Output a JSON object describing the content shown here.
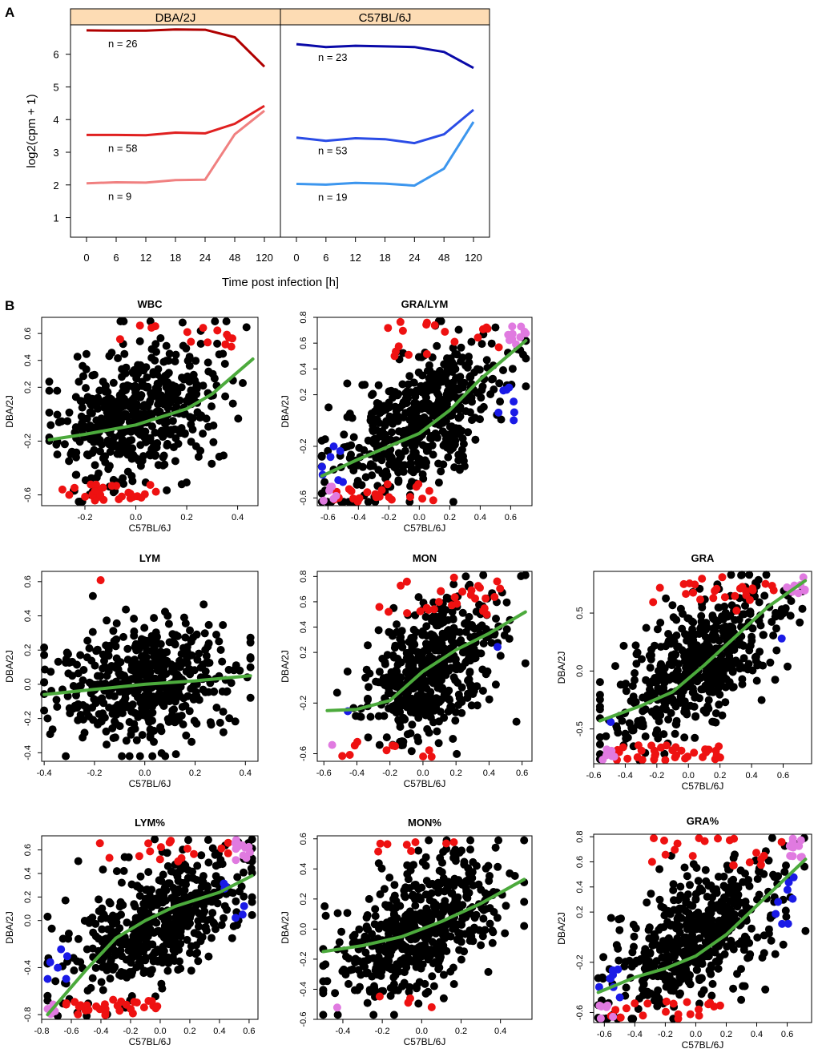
{
  "figure": {
    "panel_a_label": "A",
    "panel_b_label": "B"
  },
  "chart_data": [
    {
      "id": "A",
      "type": "line",
      "xlabel": "Time post infection [h]",
      "ylabel": "log2(cpm + 1)",
      "ylim": [
        0.4,
        6.9
      ],
      "yticks": [
        1,
        2,
        3,
        4,
        5,
        6
      ],
      "x": [
        "0",
        "6",
        "12",
        "18",
        "24",
        "48",
        "120"
      ],
      "strip_color": "#fddcb4",
      "panels": [
        {
          "name": "DBA/2J",
          "series": [
            {
              "name": "n = 26",
              "color": "#b00000",
              "values": [
                6.73,
                6.72,
                6.72,
                6.76,
                6.75,
                6.52,
                5.62
              ]
            },
            {
              "name": "n = 58",
              "color": "#e02020",
              "values": [
                3.53,
                3.53,
                3.52,
                3.6,
                3.58,
                3.87,
                4.42
              ]
            },
            {
              "name": "n = 9",
              "color": "#f08080",
              "values": [
                2.05,
                2.08,
                2.07,
                2.15,
                2.16,
                3.55,
                4.27
              ]
            }
          ]
        },
        {
          "name": "C57BL/6J",
          "series": [
            {
              "name": "n = 23",
              "color": "#0a0aa8",
              "values": [
                6.31,
                6.22,
                6.26,
                6.24,
                6.22,
                6.07,
                5.58
              ]
            },
            {
              "name": "n = 53",
              "color": "#2a4ce6",
              "values": [
                3.45,
                3.35,
                3.43,
                3.4,
                3.28,
                3.55,
                4.3
              ]
            },
            {
              "name": "n = 19",
              "color": "#3c96ee",
              "values": [
                2.03,
                2.01,
                2.06,
                2.04,
                1.98,
                2.5,
                3.93
              ]
            }
          ]
        }
      ]
    },
    {
      "id": "B",
      "type": "scatter",
      "xlabel": "C57BL/6J",
      "ylabel": "DBA/2J",
      "point_colors": {
        "default": "#000000",
        "red": "#ee1111",
        "blue": "#1a1ae6",
        "violet": "#e07ae0"
      },
      "line_color": "#4caa3c",
      "panels": [
        {
          "title": "WBC",
          "n": 520,
          "seed": 11,
          "xlim": [
            -0.37,
            0.48
          ],
          "ylim": [
            -0.68,
            0.72
          ],
          "xticks": [
            -0.2,
            0.0,
            0.2,
            0.4
          ],
          "xtick_labels": [
            "-0.2",
            "0.0",
            "0.2",
            "0.4"
          ],
          "yticks": [
            -0.6,
            -0.2,
            0.2,
            0.4,
            0.6
          ],
          "ytick_labels": [
            "-0.6",
            "-0.2",
            "0.2",
            "0.4",
            "0.6"
          ],
          "gen": {
            "mx": 0.0,
            "sx": 0.15,
            "slope": 0.5,
            "inter": 0.0,
            "noise": 0.24,
            "xmin": -0.34,
            "xmax": 0.46
          },
          "loess": [
            [
              -0.34,
              -0.19
            ],
            [
              -0.2,
              -0.15
            ],
            [
              0.0,
              -0.08
            ],
            [
              0.2,
              0.04
            ],
            [
              0.3,
              0.15
            ],
            [
              0.46,
              0.41
            ]
          ],
          "red_top": 14,
          "red_bottom": 28,
          "red_thr": 0.5,
          "blue": 0,
          "violet": 0
        },
        {
          "title": "GRA/LYM",
          "n": 540,
          "seed": 22,
          "xlim": [
            -0.67,
            0.74
          ],
          "ylim": [
            -0.66,
            0.8
          ],
          "xticks": [
            -0.6,
            -0.4,
            -0.2,
            0.0,
            0.2,
            0.4,
            0.6
          ],
          "xtick_labels": [
            "-0.6",
            "-0.4",
            "-0.2",
            "0.0",
            "0.2",
            "0.4",
            "0.6"
          ],
          "yticks": [
            -0.6,
            -0.2,
            0.2,
            0.4,
            0.6,
            0.8
          ],
          "ytick_labels": [
            "-0.6",
            "-0.2",
            "0.2",
            "0.4",
            "0.6",
            "0.8"
          ],
          "gen": {
            "mx": 0.0,
            "sx": 0.27,
            "slope": 0.7,
            "inter": 0.0,
            "noise": 0.24,
            "xmin": -0.64,
            "xmax": 0.7
          },
          "loess": [
            [
              -0.64,
              -0.43
            ],
            [
              -0.4,
              -0.3
            ],
            [
              -0.2,
              -0.2
            ],
            [
              0.0,
              -0.1
            ],
            [
              0.2,
              0.08
            ],
            [
              0.4,
              0.32
            ],
            [
              0.7,
              0.62
            ]
          ],
          "red_top": 18,
          "red_bottom": 22,
          "red_thr": 0.5,
          "blue": 14,
          "violet": 16
        },
        {
          "title": "LYM",
          "n": 520,
          "seed": 33,
          "xlim": [
            -0.41,
            0.45
          ],
          "ylim": [
            -0.45,
            0.66
          ],
          "xticks": [
            -0.4,
            -0.2,
            0.0,
            0.2,
            0.4
          ],
          "xtick_labels": [
            "-0.4",
            "-0.2",
            "0.0",
            "0.2",
            "0.4"
          ],
          "yticks": [
            -0.4,
            -0.2,
            0.0,
            0.2,
            0.4,
            0.6
          ],
          "ytick_labels": [
            "-0.4",
            "-0.2",
            "0.0",
            "0.2",
            "0.4",
            "0.6"
          ],
          "gen": {
            "mx": 0.0,
            "sx": 0.18,
            "slope": 0.12,
            "inter": 0.0,
            "noise": 0.17,
            "xmin": -0.4,
            "xmax": 0.42
          },
          "loess": [
            [
              -0.4,
              -0.06
            ],
            [
              -0.2,
              -0.03
            ],
            [
              0.0,
              0.0
            ],
            [
              0.2,
              0.02
            ],
            [
              0.42,
              0.05
            ]
          ],
          "red_top": 1,
          "red_bottom": 0,
          "red_thr": 0.6,
          "blue": 0,
          "violet": 0
        },
        {
          "title": "MON",
          "n": 520,
          "seed": 44,
          "xlim": [
            -0.64,
            0.66
          ],
          "ylim": [
            -0.66,
            0.84
          ],
          "xticks": [
            -0.6,
            -0.4,
            -0.2,
            0.0,
            0.2,
            0.4,
            0.6
          ],
          "xtick_labels": [
            "-0.6",
            "-0.4",
            "-0.2",
            "0.0",
            "0.2",
            "0.4",
            "0.6"
          ],
          "yticks": [
            -0.6,
            -0.2,
            0.2,
            0.4,
            0.6,
            0.8
          ],
          "ytick_labels": [
            "-0.6",
            "-0.2",
            "0.2",
            "0.4",
            "0.6",
            "0.8"
          ],
          "gen": {
            "mx": 0.05,
            "sx": 0.2,
            "slope": 0.7,
            "inter": 0.02,
            "noise": 0.24,
            "xmin": -0.58,
            "xmax": 0.62
          },
          "loess": [
            [
              -0.58,
              -0.26
            ],
            [
              -0.4,
              -0.25
            ],
            [
              -0.2,
              -0.18
            ],
            [
              0.0,
              0.05
            ],
            [
              0.2,
              0.22
            ],
            [
              0.4,
              0.35
            ],
            [
              0.62,
              0.52
            ]
          ],
          "red_top": 28,
          "red_bottom": 10,
          "red_thr": 0.5,
          "blue": 2,
          "violet": 1
        },
        {
          "title": "GRA",
          "n": 540,
          "seed": 55,
          "xlim": [
            -0.6,
            0.78
          ],
          "ylim": [
            -0.8,
            0.86
          ],
          "xticks": [
            -0.6,
            -0.4,
            -0.2,
            0.0,
            0.2,
            0.4,
            0.6
          ],
          "xtick_labels": [
            "-0.6",
            "-0.4",
            "-0.2",
            "0.0",
            "0.2",
            "0.4",
            "0.6"
          ],
          "yticks": [
            -0.5,
            0.0,
            0.5
          ],
          "ytick_labels": [
            "-0.5",
            "0.0",
            "0.5"
          ],
          "gen": {
            "mx": 0.05,
            "sx": 0.27,
            "slope": 0.8,
            "inter": 0.0,
            "noise": 0.25,
            "xmin": -0.56,
            "xmax": 0.74
          },
          "loess": [
            [
              -0.56,
              -0.43
            ],
            [
              -0.3,
              -0.3
            ],
            [
              -0.1,
              -0.18
            ],
            [
              0.1,
              0.05
            ],
            [
              0.3,
              0.3
            ],
            [
              0.5,
              0.55
            ],
            [
              0.74,
              0.78
            ]
          ],
          "red_top": 26,
          "red_bottom": 36,
          "red_thr": 0.5,
          "blue": 2,
          "violet": 16
        },
        {
          "title": "LYM%",
          "n": 540,
          "seed": 66,
          "xlim": [
            -0.8,
            0.66
          ],
          "ylim": [
            -0.84,
            0.72
          ],
          "xticks": [
            -0.8,
            -0.6,
            -0.4,
            -0.2,
            0.0,
            0.2,
            0.4,
            0.6
          ],
          "xtick_labels": [
            "-0.8",
            "-0.6",
            "-0.4",
            "-0.2",
            "0.0",
            "0.2",
            "0.4",
            "0.6"
          ],
          "yticks": [
            -0.8,
            -0.4,
            0.0,
            0.2,
            0.4,
            0.6
          ],
          "ytick_labels": [
            "-0.8",
            "-0.4",
            "0.0",
            "0.2",
            "0.4",
            "0.6"
          ],
          "gen": {
            "mx": 0.0,
            "sx": 0.28,
            "slope": 0.6,
            "inter": 0.0,
            "noise": 0.23,
            "xmin": -0.76,
            "xmax": 0.62
          },
          "loess": [
            [
              -0.76,
              -0.8
            ],
            [
              -0.5,
              -0.42
            ],
            [
              -0.3,
              -0.15
            ],
            [
              -0.1,
              0.0
            ],
            [
              0.1,
              0.12
            ],
            [
              0.4,
              0.24
            ],
            [
              0.62,
              0.38
            ]
          ],
          "red_top": 16,
          "red_bottom": 32,
          "red_thr": 0.5,
          "blue": 12,
          "violet": 18
        },
        {
          "title": "MON%",
          "n": 540,
          "seed": 77,
          "xlim": [
            -0.53,
            0.56
          ],
          "ylim": [
            -0.6,
            0.62
          ],
          "xticks": [
            -0.4,
            -0.2,
            0.0,
            0.2,
            0.4
          ],
          "xtick_labels": [
            "-0.4",
            "-0.2",
            "0.0",
            "0.2",
            "0.4"
          ],
          "yticks": [
            -0.6,
            -0.4,
            -0.2,
            0.0,
            0.2,
            0.4,
            0.6
          ],
          "ytick_labels": [
            "-0.6",
            "-0.4",
            "-0.2",
            "0.0",
            "0.2",
            "0.4",
            "0.6"
          ],
          "gen": {
            "mx": 0.0,
            "sx": 0.2,
            "slope": 0.55,
            "inter": 0.0,
            "noise": 0.22,
            "xmin": -0.5,
            "xmax": 0.52
          },
          "loess": [
            [
              -0.5,
              -0.15
            ],
            [
              -0.3,
              -0.11
            ],
            [
              -0.1,
              -0.05
            ],
            [
              0.1,
              0.05
            ],
            [
              0.3,
              0.17
            ],
            [
              0.52,
              0.33
            ]
          ],
          "red_top": 8,
          "red_bottom": 4,
          "red_thr": 0.5,
          "blue": 0,
          "violet": 1
        },
        {
          "title": "GRA%",
          "n": 540,
          "seed": 88,
          "xlim": [
            -0.67,
            0.76
          ],
          "ylim": [
            -0.68,
            0.82
          ],
          "xticks": [
            -0.6,
            -0.4,
            -0.2,
            0.0,
            0.2,
            0.4,
            0.6
          ],
          "xtick_labels": [
            "-0.6",
            "-0.4",
            "-0.2",
            "0.0",
            "0.2",
            "0.4",
            "0.6"
          ],
          "yticks": [
            -0.6,
            -0.2,
            0.2,
            0.4,
            0.6,
            0.8
          ],
          "ytick_labels": [
            "-0.6",
            "-0.2",
            "0.2",
            "0.4",
            "0.6",
            "0.8"
          ],
          "gen": {
            "mx": 0.0,
            "sx": 0.27,
            "slope": 0.7,
            "inter": 0.0,
            "noise": 0.24,
            "xmin": -0.64,
            "xmax": 0.72
          },
          "loess": [
            [
              -0.64,
              -0.44
            ],
            [
              -0.4,
              -0.32
            ],
            [
              -0.2,
              -0.25
            ],
            [
              0.0,
              -0.15
            ],
            [
              0.2,
              0.02
            ],
            [
              0.4,
              0.25
            ],
            [
              0.72,
              0.62
            ]
          ],
          "red_top": 20,
          "red_bottom": 20,
          "red_thr": 0.5,
          "blue": 16,
          "violet": 18
        }
      ]
    }
  ]
}
